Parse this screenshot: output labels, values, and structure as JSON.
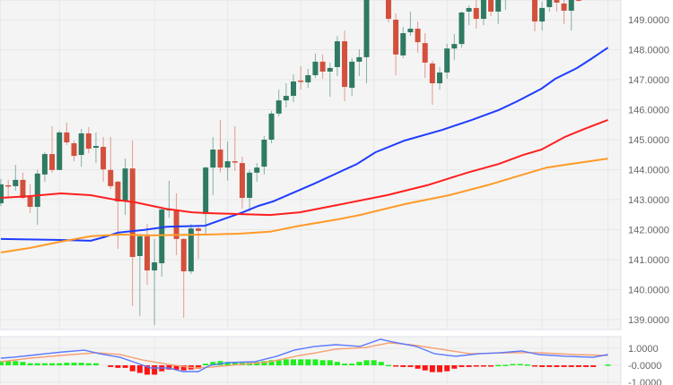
{
  "chart_data": [
    {
      "type": "candlestick",
      "title": "",
      "xlabel": "",
      "ylabel": "",
      "ylim": [
        138.7,
        149.66
      ],
      "grid": true,
      "y_ticks": [
        "149.0000",
        "148.0000",
        "147.0000",
        "146.0000",
        "145.0000",
        "144.0000",
        "143.0000",
        "142.0000",
        "141.0000",
        "140.0000",
        "139.0000"
      ],
      "y_tick_values": [
        149,
        148,
        147,
        146,
        145,
        144,
        143,
        142,
        141,
        140,
        139
      ],
      "x_grid_at_candle": [
        8,
        21,
        31,
        41,
        51,
        61,
        74,
        83
      ],
      "colors": {
        "up": "#2e7a62",
        "down": "#d3503c",
        "ma_blue": "#1f3dff",
        "ma_red": "#ff1f1f",
        "ma_orange": "#ff9a28",
        "background": "#f4f4f4",
        "grid": "#e7e7e7"
      },
      "candles_ohlc": [
        [
          142.88,
          143.69,
          142.79,
          143.51
        ],
        [
          143.48,
          143.66,
          143.06,
          143.45
        ],
        [
          143.45,
          144.16,
          143.3,
          143.66
        ],
        [
          143.66,
          143.9,
          143.03,
          143.06
        ],
        [
          143.09,
          143.51,
          142.55,
          142.76
        ],
        [
          142.76,
          143.99,
          142.16,
          143.87
        ],
        [
          143.84,
          144.58,
          143.6,
          144.52
        ],
        [
          144.52,
          145.45,
          143.9,
          143.99
        ],
        [
          143.99,
          145.3,
          143.99,
          145.24
        ],
        [
          145.24,
          145.57,
          144.82,
          144.91
        ],
        [
          144.88,
          144.97,
          144.28,
          144.46
        ],
        [
          144.49,
          145.36,
          144.1,
          145.21
        ],
        [
          145.21,
          145.42,
          144.55,
          144.7
        ],
        [
          144.73,
          145.24,
          144.22,
          144.79
        ],
        [
          144.76,
          145.09,
          143.6,
          144.01
        ],
        [
          143.99,
          145.09,
          143.36,
          143.45
        ],
        [
          143.6,
          143.63,
          141.36,
          142.94
        ],
        [
          142.97,
          144.37,
          142.49,
          144.04
        ],
        [
          144.04,
          144.97,
          139.45,
          141.09
        ],
        [
          141.12,
          141.81,
          139.12,
          141.78
        ],
        [
          141.78,
          142.19,
          140.16,
          140.64
        ],
        [
          140.64,
          141.69,
          138.82,
          140.91
        ],
        [
          140.88,
          142.7,
          140.43,
          142.67
        ],
        [
          142.64,
          143.63,
          142.4,
          142.7
        ],
        [
          142.64,
          143.21,
          141.15,
          141.69
        ],
        [
          141.69,
          141.72,
          139.06,
          140.61
        ],
        [
          140.61,
          142.19,
          140.52,
          142.04
        ],
        [
          142.04,
          142.1,
          141.03,
          141.96
        ],
        [
          142.52,
          144.1,
          141.84,
          144.07
        ],
        [
          144.07,
          145.09,
          143.15,
          144.67
        ],
        [
          144.67,
          145.66,
          143.9,
          144.07
        ],
        [
          144.07,
          144.94,
          143.63,
          144.28
        ],
        [
          144.28,
          145.45,
          143.96,
          144.25
        ],
        [
          144.22,
          144.43,
          142.7,
          143.06
        ],
        [
          143.06,
          143.99,
          142.61,
          143.9
        ],
        [
          143.9,
          144.22,
          143.6,
          144.07
        ],
        [
          144.1,
          145.12,
          143.84,
          145.0
        ],
        [
          145.0,
          145.96,
          144.88,
          145.87
        ],
        [
          145.87,
          146.67,
          145.78,
          146.31
        ],
        [
          146.31,
          146.88,
          146.07,
          146.46
        ],
        [
          146.46,
          147.18,
          146.25,
          146.94
        ],
        [
          146.97,
          147.45,
          146.67,
          146.94
        ],
        [
          146.91,
          147.36,
          146.73,
          147.15
        ],
        [
          147.15,
          147.87,
          147.06,
          147.6
        ],
        [
          147.6,
          147.84,
          147.03,
          147.27
        ],
        [
          147.27,
          147.57,
          146.43,
          147.39
        ],
        [
          147.42,
          148.46,
          147.12,
          148.28
        ],
        [
          148.28,
          148.64,
          146.28,
          146.76
        ],
        [
          146.73,
          147.72,
          146.46,
          147.6
        ],
        [
          147.6,
          148.01,
          147.12,
          147.75
        ],
        [
          147.75,
          150.3,
          146.88,
          150.1
        ],
        null,
        null,
        [
          150.0,
          150.2,
          148.91,
          149.03
        ],
        [
          149.0,
          149.21,
          147.15,
          147.84
        ],
        [
          147.81,
          148.76,
          147.72,
          148.55
        ],
        [
          148.58,
          149.27,
          148.46,
          148.7
        ],
        [
          148.7,
          148.94,
          147.9,
          148.25
        ],
        [
          148.22,
          148.55,
          147.06,
          147.57
        ],
        [
          147.54,
          147.63,
          146.16,
          146.88
        ],
        [
          146.88,
          147.42,
          146.67,
          147.24
        ],
        [
          147.24,
          148.19,
          147.03,
          148.04
        ],
        [
          148.04,
          148.52,
          147.66,
          148.19
        ],
        [
          148.19,
          149.27,
          148.07,
          149.24
        ],
        [
          149.27,
          149.48,
          148.82,
          149.39
        ],
        [
          149.39,
          149.66,
          148.7,
          149.03
        ],
        [
          149.03,
          149.8,
          148.82,
          149.7
        ],
        [
          149.7,
          149.8,
          149.12,
          149.27
        ],
        [
          149.27,
          149.85,
          148.85,
          149.75
        ],
        [
          149.8,
          150.1,
          149.33,
          150.0
        ],
        null,
        null,
        null,
        [
          149.7,
          149.8,
          148.61,
          148.94
        ],
        [
          148.94,
          149.6,
          148.64,
          149.39
        ],
        [
          149.42,
          149.8,
          149.27,
          149.7
        ],
        [
          149.7,
          149.8,
          149.27,
          149.57
        ],
        [
          149.54,
          149.66,
          148.85,
          149.3
        ],
        [
          149.3,
          149.8,
          148.64,
          149.7
        ],
        [
          149.68,
          149.75,
          149.6,
          149.63
        ],
        null,
        null,
        null,
        null
      ],
      "moving_averages": [
        {
          "color_key": "ma_blue",
          "points": [
            [
              0,
              141.69
            ],
            [
              7.4,
              141.66
            ],
            [
              12.3,
              141.63
            ],
            [
              14.1,
              141.75
            ],
            [
              16,
              141.9
            ],
            [
              19.6,
              141.99
            ],
            [
              22.7,
              142.1
            ],
            [
              27.9,
              142.13
            ],
            [
              31,
              142.4
            ],
            [
              33.1,
              142.58
            ],
            [
              35.2,
              142.79
            ],
            [
              37.2,
              142.94
            ],
            [
              42.9,
              143.54
            ],
            [
              48.7,
              144.19
            ],
            [
              51.2,
              144.58
            ],
            [
              55.2,
              144.97
            ],
            [
              60.4,
              145.33
            ],
            [
              64.4,
              145.66
            ],
            [
              68.1,
              145.99
            ],
            [
              70.6,
              146.28
            ],
            [
              73.9,
              146.7
            ],
            [
              75.8,
              147.03
            ],
            [
              78.8,
              147.39
            ],
            [
              80.7,
              147.69
            ],
            [
              83,
              148.07
            ]
          ]
        },
        {
          "color_key": "ma_red",
          "points": [
            [
              0,
              143.06
            ],
            [
              4,
              143.12
            ],
            [
              8.2,
              143.21
            ],
            [
              12.3,
              143.15
            ],
            [
              15.6,
              143.0
            ],
            [
              18.4,
              142.91
            ],
            [
              22.5,
              142.7
            ],
            [
              26.1,
              142.58
            ],
            [
              28.6,
              142.55
            ],
            [
              32.8,
              142.52
            ],
            [
              36.8,
              142.49
            ],
            [
              40.9,
              142.58
            ],
            [
              46,
              142.82
            ],
            [
              52.8,
              143.15
            ],
            [
              58.3,
              143.48
            ],
            [
              63.8,
              143.9
            ],
            [
              68.1,
              144.19
            ],
            [
              71.4,
              144.49
            ],
            [
              73.9,
              144.67
            ],
            [
              77.1,
              145.09
            ],
            [
              79.5,
              145.33
            ],
            [
              83,
              145.66
            ]
          ]
        },
        {
          "color_key": "ma_orange",
          "points": [
            [
              0,
              141.24
            ],
            [
              4,
              141.39
            ],
            [
              8.2,
              141.6
            ],
            [
              12.3,
              141.78
            ],
            [
              16.3,
              141.84
            ],
            [
              20.5,
              141.81
            ],
            [
              28.6,
              141.84
            ],
            [
              32.8,
              141.87
            ],
            [
              36.8,
              141.93
            ],
            [
              40.9,
              142.13
            ],
            [
              46,
              142.34
            ],
            [
              49.1,
              142.49
            ],
            [
              55.2,
              142.85
            ],
            [
              61.3,
              143.15
            ],
            [
              66.5,
              143.48
            ],
            [
              70.6,
              143.78
            ],
            [
              74.6,
              144.07
            ],
            [
              78.8,
              144.22
            ],
            [
              83,
              144.37
            ]
          ]
        }
      ]
    },
    {
      "type": "bar",
      "title": "",
      "ylim": [
        -1.0,
        1.0
      ],
      "y_ticks": [
        "1.0000",
        "-0.0000",
        "-1.0000"
      ],
      "y_tick_values": [
        1,
        0,
        -1
      ],
      "colors": {
        "macd": "#5a78ff",
        "signal": "#f7a071",
        "hist_up": "#1ef01e",
        "hist_down": "#ff1414"
      },
      "histogram": [
        0.25,
        0.25,
        0.25,
        0.2,
        0.12,
        0.12,
        0.12,
        0.12,
        0.12,
        0.15,
        0.15,
        0.15,
        0.12,
        0.12,
        0,
        -0.1,
        -0.15,
        -0.15,
        -0.35,
        -0.45,
        -0.55,
        -0.55,
        -0.35,
        -0.25,
        -0.25,
        -0.3,
        -0.25,
        -0.2,
        0.1,
        0.2,
        0.25,
        0.2,
        0.15,
        0.15,
        0.15,
        0.2,
        0.25,
        0.3,
        0.3,
        0.35,
        0.35,
        0.35,
        0.35,
        0.35,
        0.3,
        0.3,
        0.2,
        0.1,
        0.1,
        0.2,
        0.3,
        0.3,
        0.2,
        0.02,
        -0.05,
        -0.1,
        -0.1,
        -0.2,
        -0.3,
        -0.4,
        -0.4,
        -0.35,
        -0.2,
        -0.1,
        -0.1,
        -0.05,
        -0.03,
        -0.02,
        0.02,
        0.03,
        0.08,
        0.08,
        0.05,
        -0.07,
        -0.1,
        -0.1,
        -0.1,
        -0.1,
        -0.1,
        -0.1,
        -0.1,
        -0.1,
        0,
        0.05
      ],
      "macd_line": [
        [
          0,
          0.42
        ],
        [
          1.6,
          0.47
        ],
        [
          4,
          0.58
        ],
        [
          6.1,
          0.68
        ],
        [
          8.6,
          0.79
        ],
        [
          11.4,
          0.89
        ],
        [
          13.5,
          0.68
        ],
        [
          16.3,
          0.47
        ],
        [
          18.4,
          0.16
        ],
        [
          20.5,
          -0.16
        ],
        [
          22.9,
          -0.16
        ],
        [
          24.9,
          -0.37
        ],
        [
          27,
          -0.37
        ],
        [
          28.6,
          0
        ],
        [
          31,
          0.16
        ],
        [
          34.7,
          0.21
        ],
        [
          37.7,
          0.53
        ],
        [
          40.1,
          0.89
        ],
        [
          42.9,
          1.11
        ],
        [
          45.8,
          1.21
        ],
        [
          49.1,
          1.11
        ],
        [
          51.9,
          1.53
        ],
        [
          53.6,
          1.37
        ],
        [
          56.8,
          1.11
        ],
        [
          59.3,
          0.68
        ],
        [
          62.2,
          0.53
        ],
        [
          65.4,
          0.68
        ],
        [
          68.3,
          0.74
        ],
        [
          71.2,
          0.84
        ],
        [
          73.6,
          0.63
        ],
        [
          77.3,
          0.53
        ],
        [
          81,
          0.47
        ],
        [
          83,
          0.63
        ]
      ],
      "signal_line": [
        [
          0,
          0.21
        ],
        [
          4,
          0.42
        ],
        [
          8.2,
          0.58
        ],
        [
          13.1,
          0.74
        ],
        [
          16.3,
          0.63
        ],
        [
          19.3,
          0.32
        ],
        [
          22.9,
          0.05
        ],
        [
          26.6,
          -0.16
        ],
        [
          28.6,
          -0.11
        ],
        [
          32.8,
          0.05
        ],
        [
          36.8,
          0.21
        ],
        [
          40.9,
          0.58
        ],
        [
          42.9,
          0.72
        ],
        [
          45.8,
          0.95
        ],
        [
          49.9,
          1.05
        ],
        [
          53.1,
          1.32
        ],
        [
          56.1,
          1.21
        ],
        [
          60.1,
          0.95
        ],
        [
          64.2,
          0.68
        ],
        [
          70.3,
          0.74
        ],
        [
          73.6,
          0.74
        ],
        [
          78.5,
          0.63
        ],
        [
          83,
          0.58
        ]
      ]
    }
  ]
}
